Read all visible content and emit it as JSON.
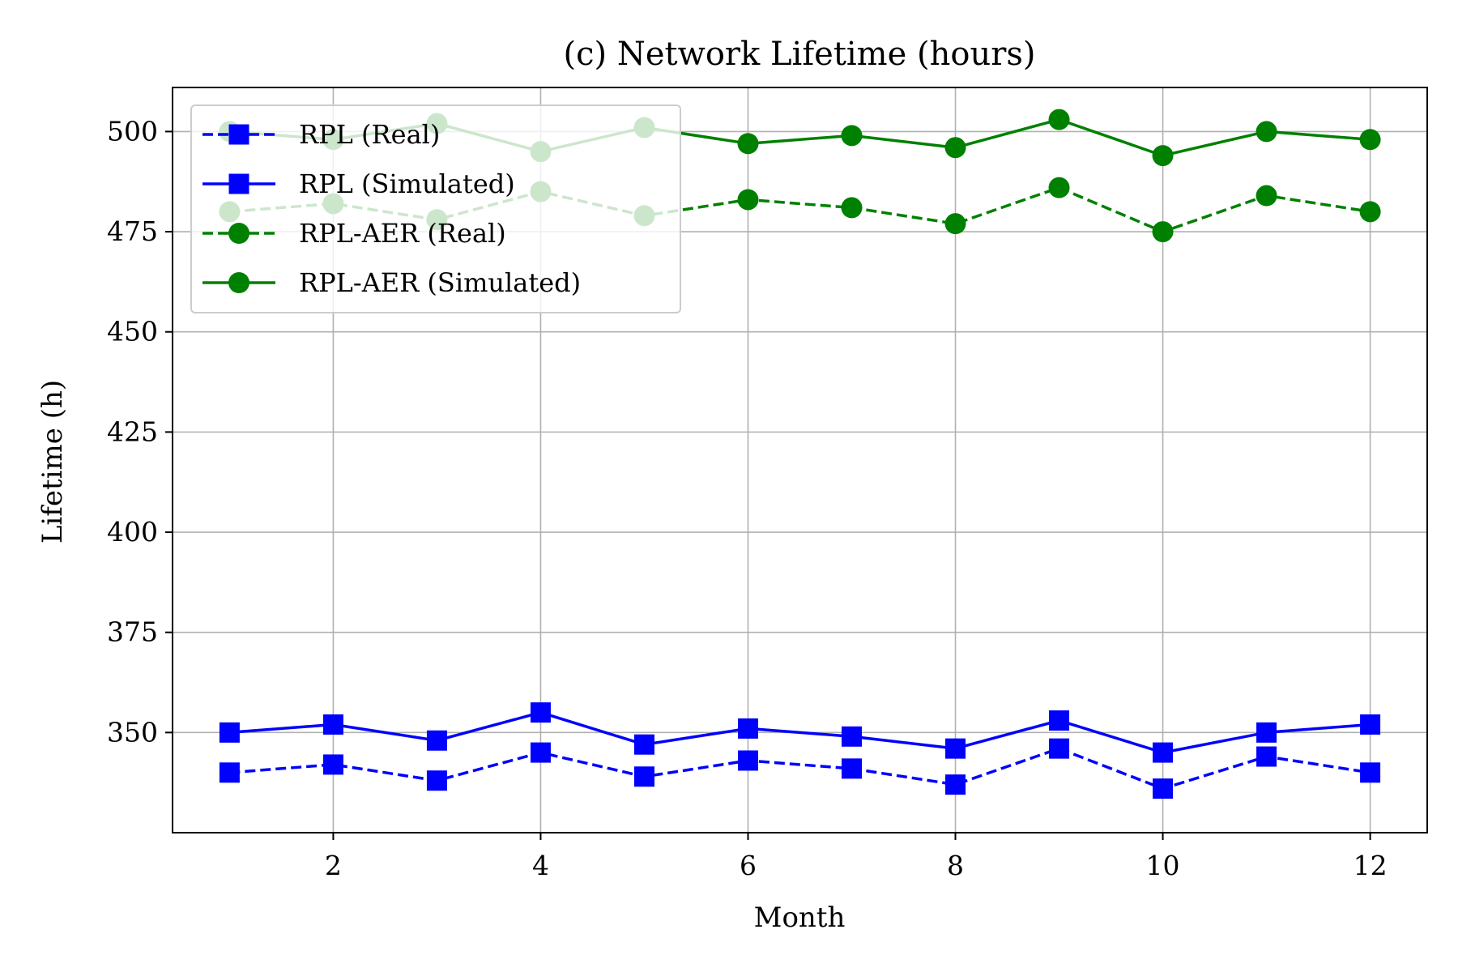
{
  "chart_data": {
    "type": "line",
    "title": "(c) Network Lifetime (hours)",
    "xlabel": "Month",
    "ylabel": "Lifetime (h)",
    "xlim": [
      0.45,
      12.55
    ],
    "ylim": [
      325,
      511
    ],
    "x_ticks": [
      2,
      4,
      6,
      8,
      10,
      12
    ],
    "y_ticks": [
      350,
      375,
      400,
      425,
      450,
      475,
      500
    ],
    "grid": true,
    "legend_position": "upper-left",
    "x": [
      1,
      2,
      3,
      4,
      5,
      6,
      7,
      8,
      9,
      10,
      11,
      12
    ],
    "series": [
      {
        "name": "RPL (Real)",
        "color": "#0000ff",
        "line_style": "dashed",
        "marker": "square",
        "values": [
          340,
          342,
          338,
          345,
          339,
          343,
          341,
          337,
          346,
          336,
          344,
          340
        ]
      },
      {
        "name": "RPL (Simulated)",
        "color": "#0000ff",
        "line_style": "solid",
        "marker": "square",
        "values": [
          350,
          352,
          348,
          355,
          347,
          351,
          349,
          346,
          353,
          345,
          350,
          352
        ]
      },
      {
        "name": "RPL-AER (Real)",
        "color": "#008000",
        "line_style": "dashed",
        "marker": "circle",
        "values": [
          480,
          482,
          478,
          485,
          479,
          483,
          481,
          477,
          486,
          475,
          484,
          480
        ]
      },
      {
        "name": "RPL-AER (Simulated)",
        "color": "#008000",
        "line_style": "solid",
        "marker": "circle",
        "values": [
          500,
          498,
          502,
          495,
          501,
          497,
          499,
          496,
          503,
          494,
          500,
          498
        ]
      }
    ]
  }
}
